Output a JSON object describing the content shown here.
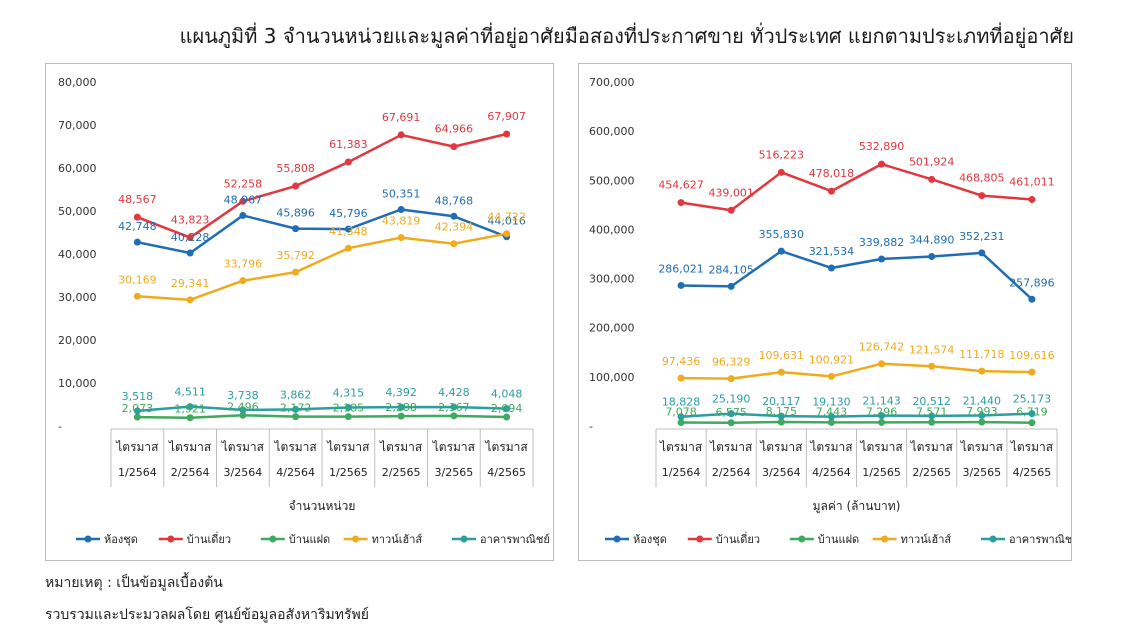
{
  "page": {
    "title": "แผนภูมิที่ 3 จำนวนหน่วยและมูลค่าที่อยู่อาศัยมือสองที่ประกาศขาย ทั่วประเทศ แยกตามประเภทที่อยู่อาศัย",
    "note": "หมายเหตุ : เป็นข้อมูลเบื้องต้น",
    "source": "รวบรวมและประมวลผลโดย ศูนย์ข้อมูลอสังหาริมทรัพย์"
  },
  "chart_data": [
    {
      "type": "line",
      "xlabel": "จำนวนหน่วย",
      "ylabel": "",
      "ylim": [
        0,
        80000
      ],
      "yticks": [
        "-",
        "10,000",
        "20,000",
        "30,000",
        "40,000",
        "50,000",
        "60,000",
        "70,000",
        "80,000"
      ],
      "grid": false,
      "legend": "bottom",
      "categories": [
        [
          "ไตรมาส",
          "1/2564"
        ],
        [
          "ไตรมาส",
          "2/2564"
        ],
        [
          "ไตรมาส",
          "3/2564"
        ],
        [
          "ไตรมาส",
          "4/2564"
        ],
        [
          "ไตรมาส",
          "1/2565"
        ],
        [
          "ไตรมาส",
          "2/2565"
        ],
        [
          "ไตรมาส",
          "3/2565"
        ],
        [
          "ไตรมาส",
          "4/2565"
        ]
      ],
      "series": [
        {
          "name": "ห้องชุด",
          "color": "#1f6db5",
          "values": [
            42748,
            40228,
            48967,
            45896,
            45796,
            50351,
            48768,
            44016
          ],
          "labels": [
            "42,748",
            "40,228",
            "48,967",
            "45,896",
            "45,796",
            "50,351",
            "48,768",
            "44,016"
          ]
        },
        {
          "name": "บ้านเดี่ยว",
          "color": "#e0383e",
          "values": [
            48567,
            43823,
            52258,
            55808,
            61383,
            67691,
            64966,
            67907
          ],
          "labels": [
            "48,567",
            "43,823",
            "52,258",
            "55,808",
            "61,383",
            "67,691",
            "64,966",
            "67,907"
          ]
        },
        {
          "name": "บ้านแฝด",
          "color": "#3faa5d",
          "values": [
            2073,
            1921,
            2496,
            2172,
            2185,
            2288,
            2367,
            2094
          ],
          "labels": [
            "2,073",
            "1,921",
            "2,496",
            "2,172",
            "2,185",
            "2,288",
            "2,367",
            "2,094"
          ]
        },
        {
          "name": "ทาวน์เฮ้าส์",
          "color": "#f0ab1d",
          "values": [
            30169,
            29341,
            33796,
            35792,
            41348,
            43819,
            42394,
            44722
          ],
          "labels": [
            "30,169",
            "29,341",
            "33,796",
            "35,792",
            "41,348",
            "43,819",
            "42,394",
            "44,722"
          ]
        },
        {
          "name": "อาคารพาณิชย์",
          "color": "#2a9ea3",
          "values": [
            3518,
            4511,
            3738,
            3862,
            4315,
            4392,
            4428,
            4048
          ],
          "labels": [
            "3,518",
            "4,511",
            "3,738",
            "3,862",
            "4,315",
            "4,392",
            "4,428",
            "4,048"
          ]
        }
      ]
    },
    {
      "type": "line",
      "xlabel": "มูลค่า (ล้านบาท)",
      "ylabel": "",
      "ylim": [
        0,
        700000
      ],
      "yticks": [
        "-",
        "100,000",
        "200,000",
        "300,000",
        "400,000",
        "500,000",
        "600,000",
        "700,000"
      ],
      "grid": false,
      "legend": "bottom",
      "categories": [
        [
          "ไตรมาส",
          "1/2564"
        ],
        [
          "ไตรมาส",
          "2/2564"
        ],
        [
          "ไตรมาส",
          "3/2564"
        ],
        [
          "ไตรมาส",
          "4/2564"
        ],
        [
          "ไตรมาส",
          "1/2565"
        ],
        [
          "ไตรมาส",
          "2/2565"
        ],
        [
          "ไตรมาส",
          "3/2565"
        ],
        [
          "ไตรมาส",
          "4/2565"
        ]
      ],
      "series": [
        {
          "name": "ห้องชุด",
          "color": "#1f6db5",
          "values": [
            286021,
            284105,
            355830,
            321534,
            339882,
            344890,
            352231,
            257896
          ],
          "labels": [
            "286,021",
            "284,105",
            "355,830",
            "321,534",
            "339,882",
            "344,890",
            "352,231",
            "257,896"
          ]
        },
        {
          "name": "บ้านเดี่ยว",
          "color": "#e0383e",
          "values": [
            454627,
            439001,
            516223,
            478018,
            532890,
            501924,
            468805,
            461011
          ],
          "labels": [
            "454,627",
            "439,001",
            "516,223",
            "478,018",
            "532,890",
            "501,924",
            "468,805",
            "461,011"
          ]
        },
        {
          "name": "บ้านแฝด",
          "color": "#3faa5d",
          "values": [
            7078,
            6575,
            8175,
            7443,
            7296,
            7571,
            7993,
            6719
          ],
          "labels": [
            "7,078",
            "6,575",
            "8,175",
            "7,443",
            "7,296",
            "7,571",
            "7,993",
            "6,719"
          ]
        },
        {
          "name": "ทาวน์เฮ้าส์",
          "color": "#f0ab1d",
          "values": [
            97436,
            96329,
            109631,
            100921,
            126742,
            121574,
            111718,
            109616
          ],
          "labels": [
            "97,436",
            "96,329",
            "109,631",
            "100,921",
            "126,742",
            "121,574",
            "111,718",
            "109,616"
          ]
        },
        {
          "name": "อาคารพาณิชย์",
          "color": "#2a9ea3",
          "values": [
            18828,
            25190,
            20117,
            19130,
            21143,
            20512,
            21440,
            25173
          ],
          "labels": [
            "18,828",
            "25,190",
            "20,117",
            "19,130",
            "21,143",
            "20,512",
            "21,440",
            "25,173"
          ]
        }
      ]
    }
  ]
}
